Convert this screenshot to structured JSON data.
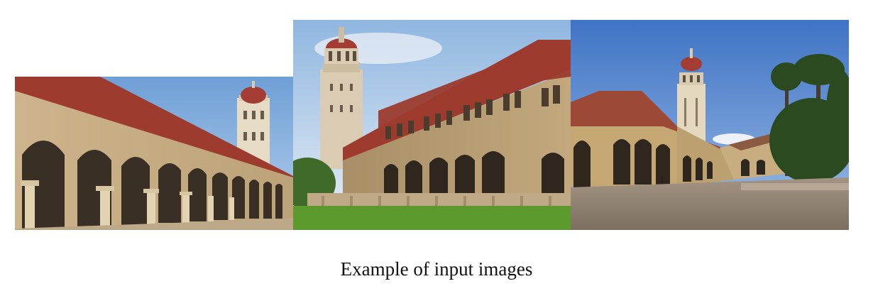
{
  "figure": {
    "caption": "Example of input images"
  },
  "photos": [
    {
      "subject": "arcade-with-tower-photo"
    },
    {
      "subject": "building-with-tower-and-lawn-photo"
    },
    {
      "subject": "courtyard-with-tower-photo"
    }
  ],
  "colors": {
    "sky": "#9cc0e6",
    "sandstone": "#c9b085",
    "roof": "#9c3b2e",
    "tower_dome": "#a33c33",
    "grass": "#5c9a2e",
    "pavement": "#8e8273",
    "palm": "#2b4a1f"
  }
}
